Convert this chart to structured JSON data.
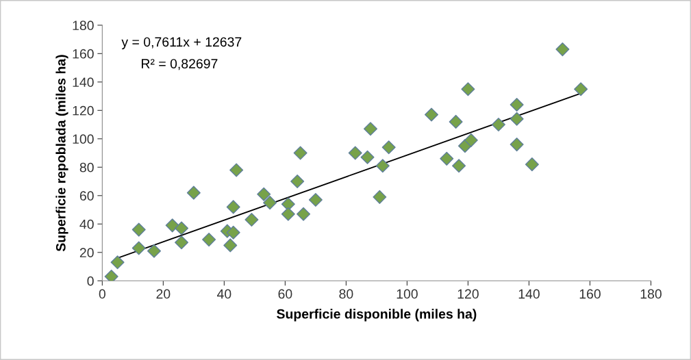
{
  "chart_data": {
    "type": "scatter",
    "xlabel": "Superficie disponible (miles ha)",
    "ylabel": "Superficie repoblada (miles ha)",
    "xlim": [
      0,
      180
    ],
    "ylim": [
      0,
      180
    ],
    "xticks": [
      0,
      20,
      40,
      60,
      80,
      100,
      120,
      140,
      160,
      180
    ],
    "yticks": [
      0,
      20,
      40,
      60,
      80,
      100,
      120,
      140,
      160,
      180
    ],
    "grid": false,
    "legend": false,
    "marker": "diamond",
    "annotations": [
      "y = 0,7611x + 12637",
      "R² = 0,82697"
    ],
    "series": [
      {
        "color": "#77a24a",
        "x": [
          3,
          5,
          12,
          12,
          17,
          23,
          26,
          26,
          30,
          35,
          41,
          42,
          43,
          43,
          44,
          49,
          53,
          55,
          61,
          61,
          64,
          66,
          65,
          70,
          83,
          87,
          88,
          92,
          91,
          94,
          108,
          113,
          116,
          117,
          119,
          120,
          121,
          130,
          136,
          136,
          136,
          141,
          151,
          157
        ],
        "values": [
          3,
          13,
          23,
          36,
          21,
          39,
          37,
          27,
          62,
          29,
          35,
          25,
          34,
          52,
          78,
          43,
          61,
          55,
          54,
          47,
          70,
          47,
          90,
          57,
          90,
          87,
          107,
          81,
          59,
          94,
          117,
          86,
          112,
          81,
          95,
          135,
          99,
          110,
          114,
          124,
          96,
          82,
          163,
          135
        ]
      },
      {
        "type": "line",
        "color": "#000000",
        "marker": "none",
        "line_style": "solid",
        "x": [
          5,
          157
        ],
        "values": [
          16,
          132
        ]
      }
    ]
  }
}
